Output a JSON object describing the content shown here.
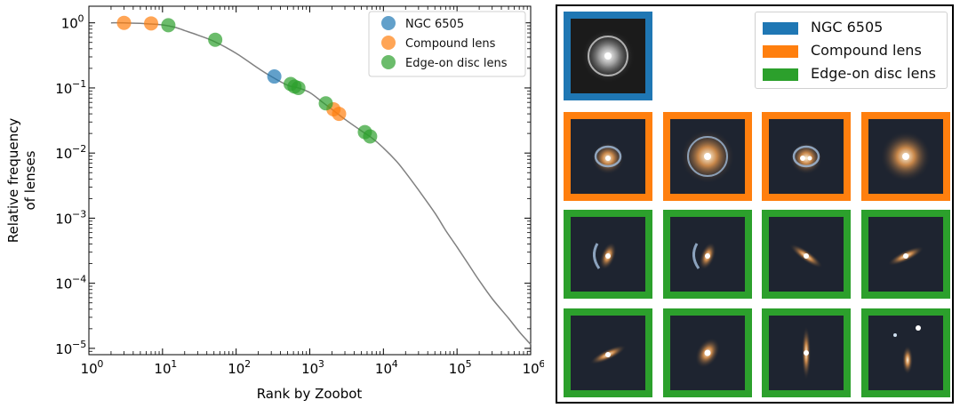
{
  "chart_data": {
    "type": "scatter",
    "title": "",
    "xlabel": "Rank by Zoobot",
    "ylabel_lines": [
      "Relative frequency",
      "of lenses"
    ],
    "xscale": "log",
    "yscale": "log",
    "xlim": [
      1,
      1000000
    ],
    "ylim": [
      8e-06,
      1.8
    ],
    "x_ticks": [
      {
        "value": 1,
        "base": "10",
        "exp": "0"
      },
      {
        "value": 10,
        "base": "10",
        "exp": "1"
      },
      {
        "value": 100,
        "base": "10",
        "exp": "2"
      },
      {
        "value": 1000,
        "base": "10",
        "exp": "3"
      },
      {
        "value": 10000,
        "base": "10",
        "exp": "4"
      },
      {
        "value": 100000,
        "base": "10",
        "exp": "5"
      },
      {
        "value": 1000000,
        "base": "10",
        "exp": "6"
      }
    ],
    "y_ticks": [
      {
        "value": 1,
        "base": "10",
        "exp": "0"
      },
      {
        "value": 0.1,
        "base": "10",
        "exp": "−1"
      },
      {
        "value": 0.01,
        "base": "10",
        "exp": "−2"
      },
      {
        "value": 0.001,
        "base": "10",
        "exp": "−3"
      },
      {
        "value": 0.0001,
        "base": "10",
        "exp": "−4"
      },
      {
        "value": 1e-05,
        "base": "10",
        "exp": "−5"
      }
    ],
    "curve": {
      "name": "Relative frequency curve",
      "color": "#808080",
      "x": [
        2,
        3,
        5,
        7,
        10,
        15,
        20,
        30,
        50,
        100,
        200,
        300,
        500,
        700,
        1000,
        1500,
        2000,
        3000,
        5000,
        7000,
        10000,
        15000,
        20000,
        30000,
        50000,
        70000,
        100000,
        150000,
        200000,
        300000,
        500000,
        700000,
        1000000
      ],
      "y": [
        1.0,
        1.0,
        0.98,
        0.96,
        0.93,
        0.85,
        0.76,
        0.65,
        0.52,
        0.34,
        0.2,
        0.15,
        0.11,
        0.1,
        0.085,
        0.06,
        0.047,
        0.033,
        0.022,
        0.017,
        0.012,
        0.0075,
        0.005,
        0.0027,
        0.0012,
        0.00065,
        0.00036,
        0.00018,
        0.00011,
        5.8e-05,
        2.9e-05,
        1.8e-05,
        1.15e-05
      ]
    },
    "series": [
      {
        "name": "NGC 6505",
        "color": "#1f77b4",
        "x": [
          330
        ],
        "y": [
          0.15
        ]
      },
      {
        "name": "Compound lens",
        "color": "#ff7f0e",
        "x": [
          3,
          7,
          2100,
          2500
        ],
        "y": [
          1.0,
          0.98,
          0.047,
          0.04
        ]
      },
      {
        "name": "Edge-on disc lens",
        "color": "#2ca02c",
        "x": [
          12,
          52,
          550,
          620,
          700,
          1650,
          5600,
          6600
        ],
        "y": [
          0.92,
          0.55,
          0.115,
          0.105,
          0.1,
          0.058,
          0.021,
          0.018
        ]
      }
    ],
    "legend": {
      "position": "top-right",
      "entries": [
        "NGC 6505",
        "Compound lens",
        "Edge-on disc lens"
      ]
    }
  },
  "gallery": {
    "legend": [
      {
        "label": "NGC 6505",
        "color": "#1f77b4"
      },
      {
        "label": "Compound lens",
        "color": "#ff7f0e"
      },
      {
        "label": "Edge-on disc lens",
        "color": "#2ca02c"
      }
    ],
    "rows": [
      {
        "category": "NGC 6505",
        "color": "#1f77b4",
        "count": 1
      },
      {
        "category": "Compound lens",
        "color": "#ff7f0e",
        "count": 4
      },
      {
        "category": "Edge-on disc lens",
        "color": "#2ca02c",
        "count": 4
      },
      {
        "category": "Edge-on disc lens",
        "color": "#2ca02c",
        "count": 4
      }
    ]
  }
}
